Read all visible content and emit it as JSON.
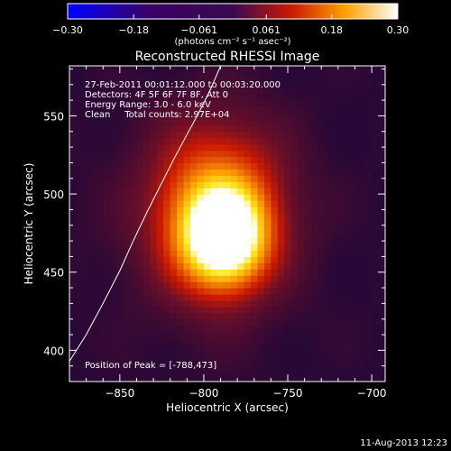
{
  "chart_data": {
    "type": "heatmap",
    "title": "Reconstructed RHESSI Image",
    "xlabel": "Heliocentric X (arcsec)",
    "ylabel": "Heliocentric Y (arcsec)",
    "xlim": [
      -880,
      -692
    ],
    "ylim": [
      380,
      582
    ],
    "x_ticks": [
      -850,
      -800,
      -750,
      -700
    ],
    "x_tick_labels": [
      "−850",
      "−800",
      "−750",
      "−700"
    ],
    "y_ticks": [
      400,
      450,
      500,
      550
    ],
    "y_tick_labels": [
      "400",
      "450",
      "500",
      "550"
    ],
    "colorbar": {
      "range": [
        -0.3,
        0.3
      ],
      "ticks": [
        -0.3,
        -0.18,
        -0.061,
        0.061,
        0.18,
        0.3
      ],
      "tick_labels": [
        "−0.30",
        "−0.18",
        "−0.061",
        "0.061",
        "0.18",
        "0.30"
      ],
      "units": "(photons cm⁻² s⁻¹ asec⁻²)",
      "colormap": "blue-purple-red-yellow-white"
    },
    "annotations": [
      "27-Feb-2011 00:01:12.000 to 00:03:20.000",
      "Detectors: 4F 5F 6F 7F 8F, Att 0",
      "Energy Range: 3.0 - 6.0 keV",
      "Clean     Total counts: 2.97E+04"
    ],
    "peak_label": "Position of Peak = [-788,473]",
    "peak": [
      -788,
      473
    ],
    "source": {
      "components": [
        {
          "x": -788,
          "y": 473,
          "sx": 16,
          "sy": 20,
          "amp": 0.3
        },
        {
          "x": -792,
          "y": 490,
          "sx": 26,
          "sy": 36,
          "amp": 0.17
        },
        {
          "x": -797,
          "y": 485,
          "sx": 42,
          "sy": 52,
          "amp": 0.035
        }
      ],
      "background": 0.0
    },
    "limb_curve": {
      "x": [
        -880,
        -870,
        -860,
        -850,
        -842,
        -834,
        -826,
        -818,
        -810,
        -803,
        -796,
        -790
      ],
      "y": [
        393,
        410,
        430,
        451,
        470,
        488,
        505,
        522,
        538,
        552,
        567,
        582
      ]
    },
    "footer_date": "11-Aug-2013 12:23"
  }
}
